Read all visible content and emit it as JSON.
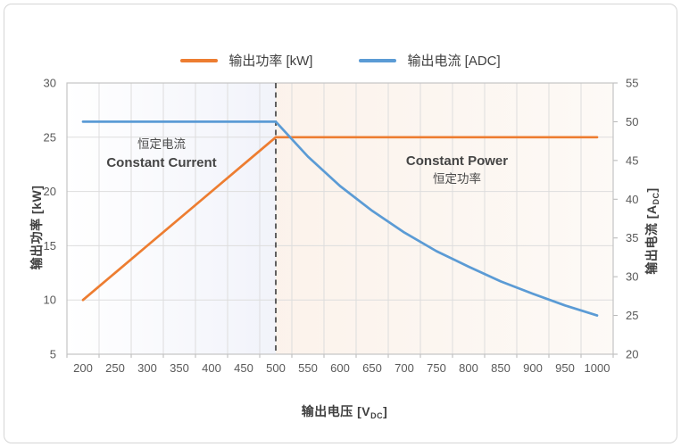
{
  "legend": {
    "items": [
      {
        "label": "输出功率 [kW]",
        "color": "#ED7D31"
      },
      {
        "label": "输出电流 [ADC]",
        "color": "#5B9BD5"
      }
    ]
  },
  "axes": {
    "x": {
      "title_main": "输出电压 [V",
      "title_sub": "DC",
      "title_end": "]",
      "ticks": [
        "200",
        "250",
        "300",
        "350",
        "400",
        "450",
        "500",
        "550",
        "600",
        "650",
        "700",
        "750",
        "800",
        "850",
        "900",
        "950",
        "1000"
      ]
    },
    "y_left": {
      "title": "输出功率 [kW]",
      "ticks": [
        "30",
        "25",
        "20",
        "15",
        "10",
        "5"
      ]
    },
    "y_right": {
      "title_main": "输出电流 [A",
      "title_sub": "DC",
      "title_end": "]",
      "ticks": [
        "55",
        "50",
        "45",
        "40",
        "35",
        "30",
        "25",
        "20"
      ]
    }
  },
  "annotations": {
    "left_zh": "恒定电流",
    "left_en": "Constant Current",
    "right_en": "Constant Power",
    "right_zh": "恒定功率"
  },
  "chart_data": {
    "type": "line",
    "title": "",
    "xlabel": "输出电压 [VDC]",
    "ylabel_left": "输出功率 [kW]",
    "ylabel_right": "输出电流 [ADC]",
    "legend_position": "top",
    "grid": true,
    "x": [
      200,
      250,
      300,
      350,
      400,
      450,
      500,
      550,
      600,
      650,
      700,
      750,
      800,
      850,
      900,
      950,
      1000
    ],
    "ylim_left": [
      5,
      30
    ],
    "ylim_right": [
      20,
      55
    ],
    "vline": {
      "x": 500,
      "style": "dashed",
      "color": "#3c3c3c"
    },
    "series": [
      {
        "name": "输出功率 [kW]",
        "axis": "left",
        "color": "#ED7D31",
        "values": [
          10,
          12.5,
          15,
          17.5,
          20,
          22.5,
          25,
          25,
          25,
          25,
          25,
          25,
          25,
          25,
          25,
          25,
          25
        ]
      },
      {
        "name": "输出电流 [ADC]",
        "axis": "right",
        "color": "#5B9BD5",
        "values": [
          50,
          50,
          50,
          50,
          50,
          50,
          50,
          45.5,
          41.7,
          38.5,
          35.7,
          33.3,
          31.3,
          29.4,
          27.8,
          26.3,
          25
        ]
      }
    ]
  }
}
